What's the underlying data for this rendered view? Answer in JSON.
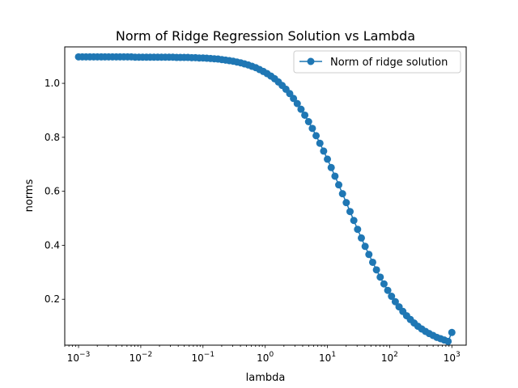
{
  "chart_data": {
    "type": "line",
    "title": "Norm of Ridge Regression Solution vs Lambda",
    "xlabel": "lambda",
    "ylabel": "norms",
    "xscale": "log",
    "xlim": [
      0.0006,
      1700
    ],
    "ylim": [
      0.03,
      1.135
    ],
    "x_ticks": [
      {
        "value": 0.001,
        "base": "10",
        "exp": "−3"
      },
      {
        "value": 0.01,
        "base": "10",
        "exp": "−2"
      },
      {
        "value": 0.1,
        "base": "10",
        "exp": "−1"
      },
      {
        "value": 1,
        "base": "10",
        "exp": "0"
      },
      {
        "value": 10,
        "base": "10",
        "exp": "1"
      },
      {
        "value": 100,
        "base": "10",
        "exp": "2"
      },
      {
        "value": 1000,
        "base": "10",
        "exp": "3"
      }
    ],
    "y_ticks": [
      {
        "value": 0.2,
        "label": "0.2"
      },
      {
        "value": 0.4,
        "label": "0.4"
      },
      {
        "value": 0.6,
        "label": "0.6"
      },
      {
        "value": 0.8,
        "label": "0.8"
      },
      {
        "value": 1.0,
        "label": "1.0"
      }
    ],
    "grid": false,
    "legend_position": "top-right",
    "series": [
      {
        "name": "Norm of ridge solution",
        "color": "#1f77b4",
        "marker": "circle",
        "x": [
          0.001,
          0.00115,
          0.00132,
          0.00152,
          0.00175,
          0.00201,
          0.00231,
          0.00266,
          0.00305,
          0.00351,
          0.00404,
          0.00464,
          0.00534,
          0.00614,
          0.00705,
          0.00811,
          0.00933,
          0.01072,
          0.01233,
          0.01417,
          0.0163,
          0.01874,
          0.02154,
          0.02477,
          0.02848,
          0.03275,
          0.03765,
          0.04329,
          0.04977,
          0.05722,
          0.06579,
          0.07565,
          0.08697,
          0.1,
          0.115,
          0.1322,
          0.152,
          0.1748,
          0.2009,
          0.231,
          0.2656,
          0.3054,
          0.3511,
          0.4037,
          0.4642,
          0.5337,
          0.6136,
          0.7055,
          0.8111,
          0.9326,
          1.072,
          1.233,
          1.417,
          1.63,
          1.874,
          2.154,
          2.477,
          2.848,
          3.275,
          3.765,
          4.329,
          4.977,
          5.722,
          6.579,
          7.565,
          8.697,
          10.0,
          11.5,
          13.22,
          15.2,
          17.48,
          20.09,
          23.1,
          26.56,
          30.54,
          35.11,
          40.37,
          46.42,
          53.37,
          61.36,
          70.55,
          81.11,
          93.26,
          107.2,
          123.3,
          141.7,
          163.0,
          187.4,
          215.4,
          247.7,
          284.8,
          327.5,
          376.5,
          432.9,
          497.7,
          572.2,
          657.9,
          756.5,
          869.7,
          1000
        ],
        "values": [
          1.098,
          1.098,
          1.098,
          1.098,
          1.098,
          1.098,
          1.098,
          1.098,
          1.098,
          1.098,
          1.098,
          1.098,
          1.098,
          1.098,
          1.098,
          1.097,
          1.097,
          1.097,
          1.097,
          1.097,
          1.097,
          1.097,
          1.097,
          1.097,
          1.097,
          1.097,
          1.096,
          1.096,
          1.096,
          1.096,
          1.095,
          1.095,
          1.094,
          1.094,
          1.093,
          1.092,
          1.091,
          1.09,
          1.088,
          1.086,
          1.084,
          1.082,
          1.079,
          1.076,
          1.072,
          1.068,
          1.063,
          1.058,
          1.051,
          1.044,
          1.036,
          1.027,
          1.017,
          1.005,
          0.992,
          0.978,
          0.962,
          0.944,
          0.925,
          0.904,
          0.882,
          0.858,
          0.833,
          0.806,
          0.778,
          0.749,
          0.719,
          0.688,
          0.656,
          0.624,
          0.591,
          0.558,
          0.525,
          0.492,
          0.459,
          0.427,
          0.396,
          0.366,
          0.337,
          0.309,
          0.282,
          0.257,
          0.233,
          0.211,
          0.191,
          0.172,
          0.155,
          0.139,
          0.125,
          0.112,
          0.1,
          0.09,
          0.081,
          0.073,
          0.066,
          0.059,
          0.054,
          0.049,
          0.044,
          0.077
        ]
      }
    ]
  }
}
